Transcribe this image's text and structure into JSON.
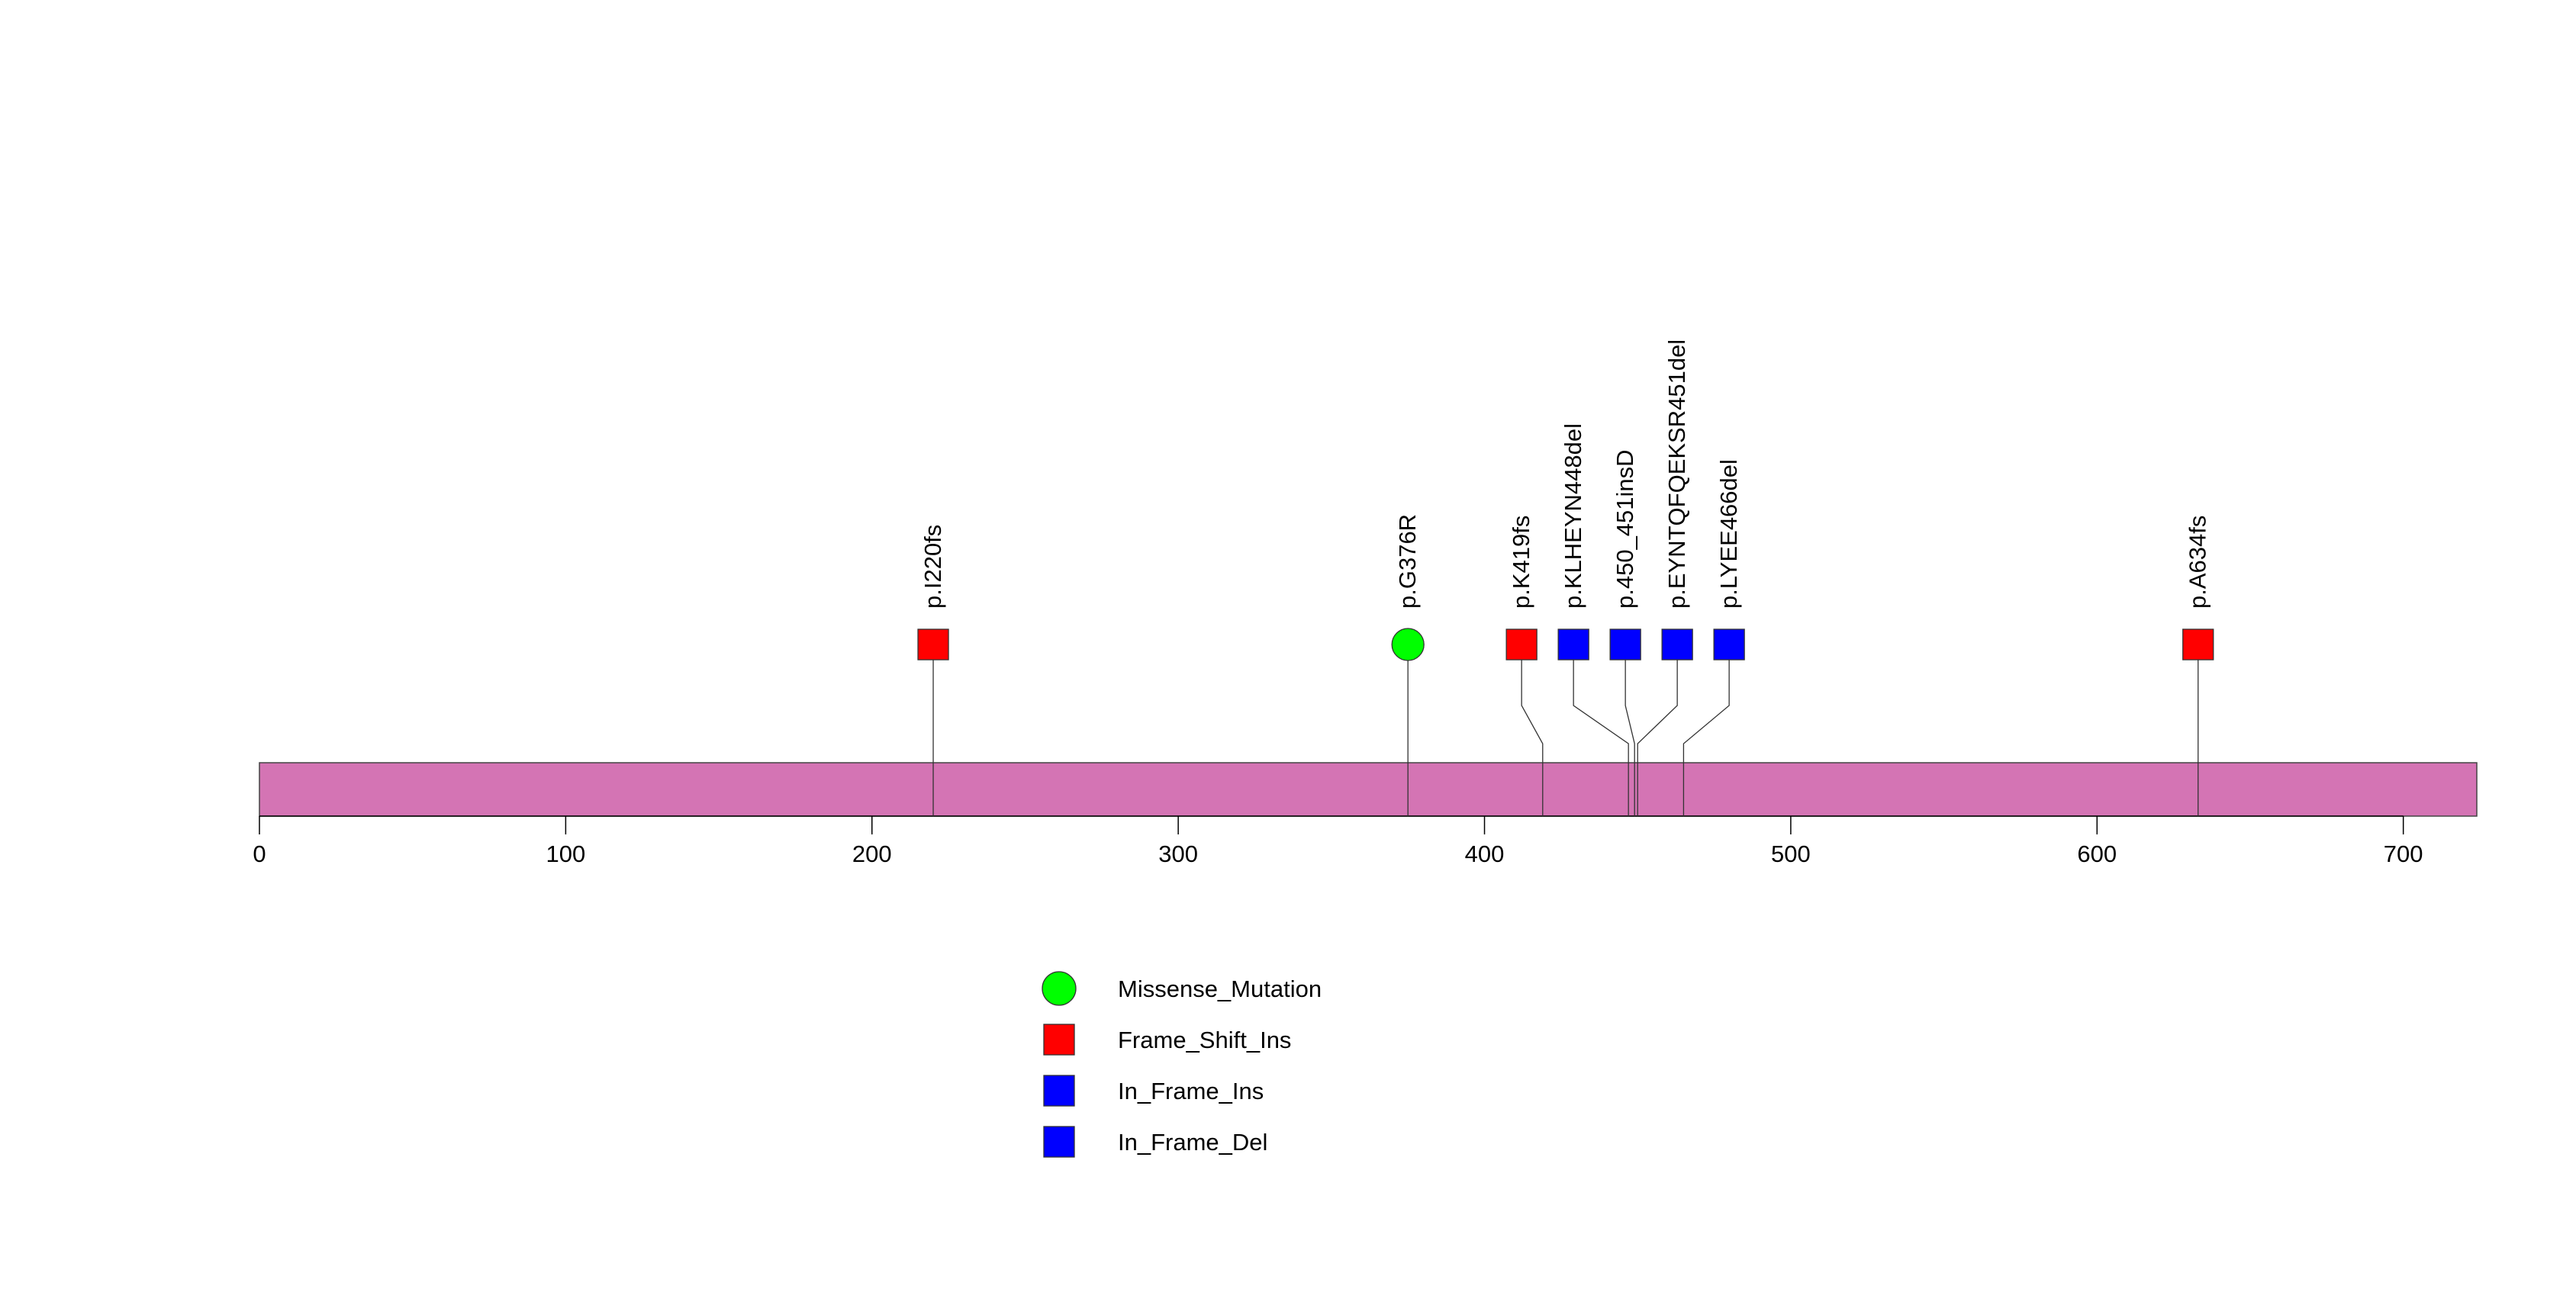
{
  "chart_data": {
    "type": "lollipop",
    "title": "",
    "xlabel": "",
    "ylabel": "",
    "xlim": [
      0,
      724
    ],
    "xticks": [
      0,
      100,
      200,
      300,
      400,
      500,
      600,
      700
    ],
    "protein_length": 724,
    "protein_color": "#d474b4",
    "mutations": [
      {
        "label": "p.I220fs",
        "position": 220,
        "type": "Frame_Shift_Ins"
      },
      {
        "label": "p.G376R",
        "position": 375,
        "type": "Missense_Mutation"
      },
      {
        "label": "p.K419fs",
        "position": 419,
        "type": "Frame_Shift_Ins"
      },
      {
        "label": "p.KLHEYN448del",
        "position": 447,
        "type": "In_Frame_Del"
      },
      {
        "label": "p.450_451insD",
        "position": 449,
        "type": "In_Frame_Ins"
      },
      {
        "label": "p.EYNTQFQEKSR451del",
        "position": 450,
        "type": "In_Frame_Del"
      },
      {
        "label": "p.LYEE466del",
        "position": 465,
        "type": "In_Frame_Del"
      },
      {
        "label": "p.A634fs",
        "position": 633,
        "type": "Frame_Shift_Ins"
      }
    ],
    "legend": {
      "placement": "bottom-center",
      "entries": [
        {
          "name": "Missense_Mutation",
          "shape": "circle",
          "color": "#00ff00"
        },
        {
          "name": "Frame_Shift_Ins",
          "shape": "square",
          "color": "#ff0000"
        },
        {
          "name": "In_Frame_Ins",
          "shape": "square",
          "color": "#0000ff"
        },
        {
          "name": "In_Frame_Del",
          "shape": "square",
          "color": "#0000ff"
        }
      ]
    },
    "type_colors": {
      "Missense_Mutation": "#00ff00",
      "Frame_Shift_Ins": "#ff0000",
      "In_Frame_Ins": "#0000ff",
      "In_Frame_Del": "#0000ff"
    }
  }
}
